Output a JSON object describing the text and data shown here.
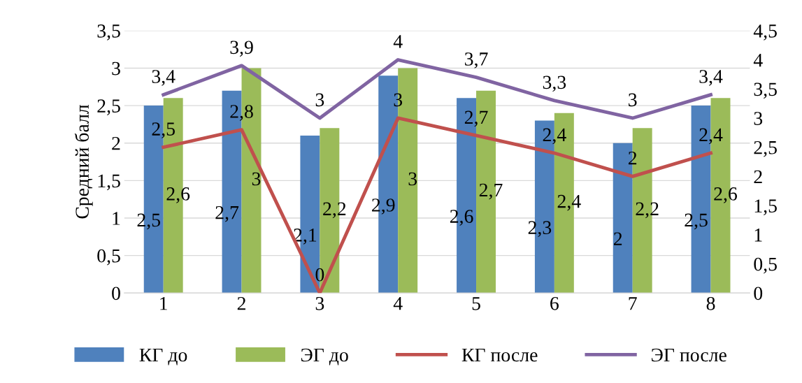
{
  "chart_data": {
    "type": "bar",
    "ylabel": "Средний балл",
    "categories": [
      "1",
      "2",
      "3",
      "4",
      "5",
      "6",
      "7",
      "8"
    ],
    "series": [
      {
        "name": "КГ до",
        "color": "#4f81bd",
        "values": [
          2.5,
          2.7,
          2.1,
          2.9,
          2.6,
          2.3,
          2,
          2.5
        ],
        "value_labels": [
          "2,5",
          "2,7",
          "2,1",
          "2,9",
          "2,6",
          "2,3",
          "2",
          "2,5"
        ]
      },
      {
        "name": "ЭГ до",
        "color": "#9bbb59",
        "values": [
          2.6,
          3,
          2.2,
          3,
          2.7,
          2.4,
          2.2,
          2.6
        ],
        "value_labels": [
          "2,6",
          "3",
          "2,2",
          "3",
          "2,7",
          "2,4",
          "2,2",
          "2,6"
        ]
      },
      {
        "name": "КГ после",
        "type": "line",
        "axis": "y2",
        "color": "#c0504d",
        "values": [
          2.5,
          2.8,
          0,
          3,
          2.7,
          2.4,
          2,
          2.4
        ],
        "value_labels": [
          "2,5",
          "2,8",
          "0",
          "3",
          "2,7",
          "2,4",
          "2",
          "2,4"
        ]
      },
      {
        "name": "ЭГ после",
        "type": "line",
        "axis": "y2",
        "color": "#8064a2",
        "values": [
          3.4,
          3.9,
          3,
          4,
          3.7,
          3.3,
          3,
          3.4
        ],
        "value_labels": [
          "3,4",
          "3,9",
          "3",
          "4",
          "3,7",
          "3,3",
          "3",
          "3,4"
        ]
      }
    ],
    "ylim": [
      0,
      3.5
    ],
    "yticks": [
      0,
      {
        "value": 0.5,
        "label": "0,5"
      },
      1,
      {
        "value": 1.5,
        "label": "1,5"
      },
      2,
      {
        "value": 2.5,
        "label": "2,5"
      },
      3,
      {
        "value": 3.5,
        "label": "3,5"
      }
    ],
    "y2lim": [
      0,
      4.5
    ],
    "y2ticks": [
      0,
      {
        "value": 0.5,
        "label": "0,5"
      },
      1,
      {
        "value": 1.5,
        "label": "1,5"
      },
      2,
      {
        "value": 2.5,
        "label": "2,5"
      },
      3,
      {
        "value": 3.5,
        "label": "3,5"
      },
      4,
      {
        "value": 4.5,
        "label": "4,5"
      }
    ],
    "grid": "y",
    "legend": "bottom",
    "marker": "none",
    "line_style": "solid"
  }
}
